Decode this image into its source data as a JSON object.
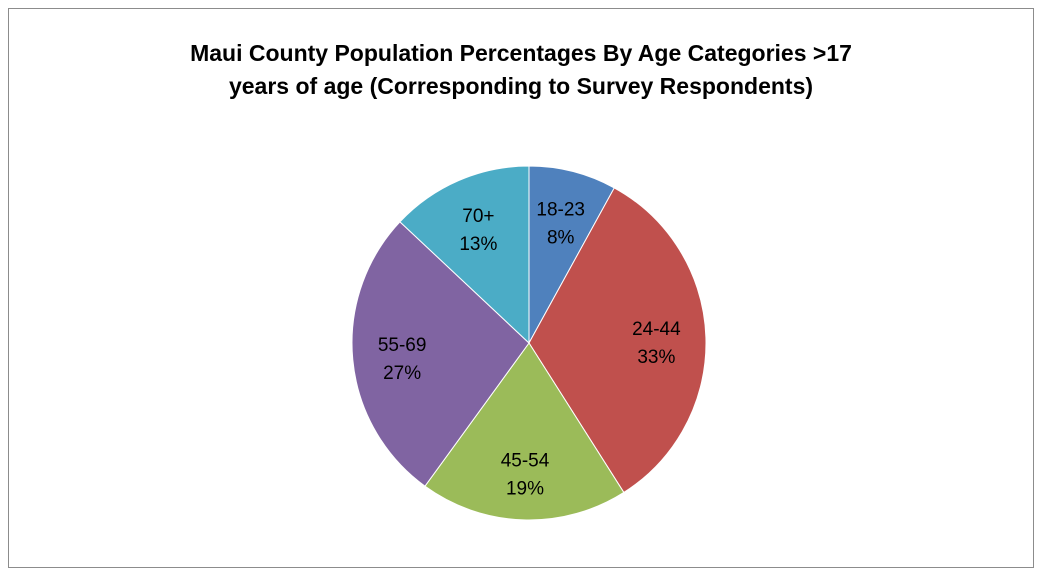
{
  "chart_data": {
    "type": "pie",
    "title_lines": [
      "Maui County Population Percentages By Age Categories >17",
      "years of age (Corresponding to Survey Respondents)"
    ],
    "categories": [
      "18-23",
      "24-44",
      "45-54",
      "55-69",
      "70+"
    ],
    "values": [
      8,
      33,
      19,
      27,
      13
    ],
    "data_labels": [
      "8%",
      "33%",
      "19%",
      "27%",
      "13%"
    ],
    "colors": [
      "#4f81bd",
      "#c0504d",
      "#9bbb59",
      "#8064a2",
      "#4bacc6"
    ],
    "start_angle_deg": 0,
    "direction": "clockwise",
    "legend": "none"
  }
}
